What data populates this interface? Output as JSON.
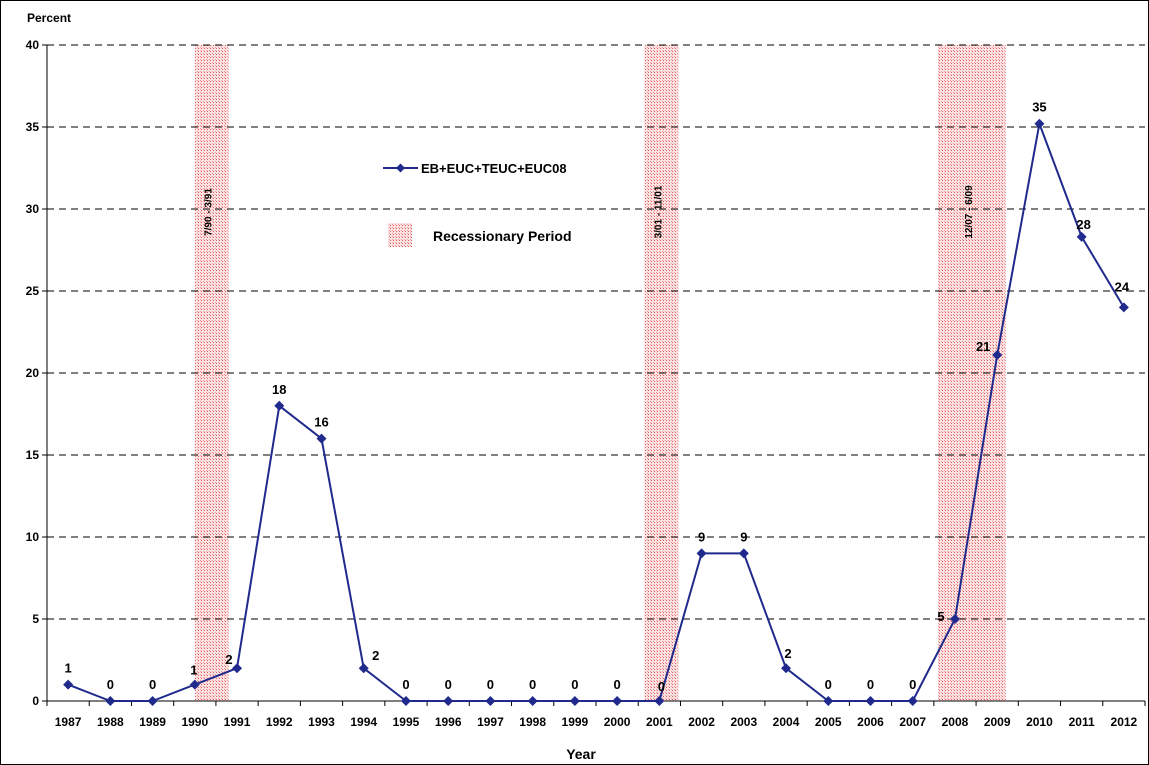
{
  "chart_data": {
    "type": "line",
    "ylabel": "Percent",
    "xlabel": "Year",
    "ylim": [
      0,
      40
    ],
    "yticks": [
      0,
      5,
      10,
      15,
      20,
      25,
      30,
      35,
      40
    ],
    "grid": "horizontal dashed",
    "categories": [
      "1987",
      "1988",
      "1989",
      "1990",
      "1991",
      "1992",
      "1993",
      "1994",
      "1995",
      "1996",
      "1997",
      "1998",
      "1999",
      "2000",
      "2001",
      "2002",
      "2003",
      "2004",
      "2005",
      "2006",
      "2007",
      "2008",
      "2009",
      "2010",
      "2011",
      "2012"
    ],
    "series": [
      {
        "name": "EB+EUC+TEUC+EUC08",
        "color": "#1f2a8c",
        "values": [
          1,
          0,
          0,
          1,
          2,
          18,
          16,
          2,
          0,
          0,
          0,
          0,
          0,
          0,
          0,
          9,
          9,
          2,
          0,
          0,
          0,
          5,
          21.1,
          35.2,
          28.3,
          24
        ],
        "labels": [
          "1",
          "0",
          "0",
          "1",
          "2",
          "18",
          "16",
          "2",
          "0",
          "0",
          "0",
          "0",
          "0",
          "0",
          "0",
          "9",
          "9",
          "2",
          "0",
          "0",
          "0",
          "5",
          "21",
          "35",
          "28",
          "24"
        ]
      }
    ],
    "recessions": [
      {
        "label": "7/90 - 3/91",
        "start": 1990.0,
        "end": 1990.8
      },
      {
        "label": "3/01 - 11/01",
        "start": 2000.65,
        "end": 2001.45
      },
      {
        "label": "12/07 - 6/09",
        "start": 2007.6,
        "end": 2009.2
      }
    ],
    "legend": {
      "position": "upper-left",
      "series_label": "EB+EUC+TEUC+EUC08",
      "recession_label": "Recessionary Period"
    },
    "colors": {
      "line": "#1f2a8c",
      "recession_fill": "#f3a3a3",
      "grid": "#000000"
    }
  }
}
